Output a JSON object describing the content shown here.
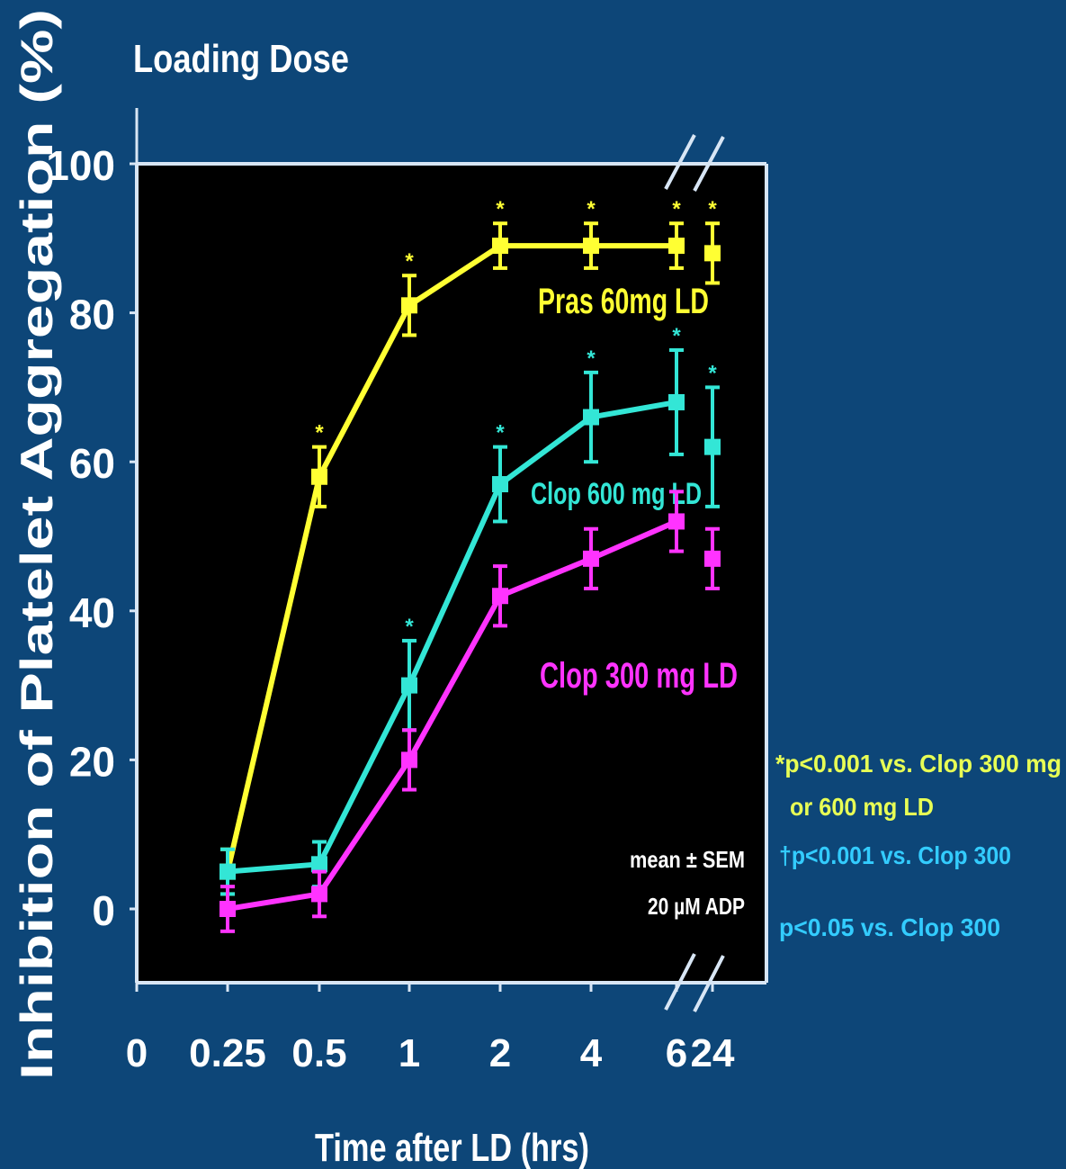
{
  "chart_data": {
    "type": "line",
    "title": "Loading Dose",
    "xlabel": "Time after LD (hrs)",
    "ylabel": "Inhibition of Platelet Aggregation (%)",
    "ylim": [
      -10,
      100
    ],
    "y_ticks": [
      "0",
      "20",
      "40",
      "60",
      "80",
      "100"
    ],
    "x_ticks": [
      "0",
      "0.25",
      "0.5",
      "1",
      "2",
      "4",
      "6",
      "24"
    ],
    "categories": [
      "0.25",
      "0.5",
      "1",
      "2",
      "4",
      "6",
      "24"
    ],
    "grid": false,
    "axis_breaks": "6 to 24 hrs",
    "series": [
      {
        "name": "Pras 60mg LD",
        "color": "#ffff33",
        "values": [
          5,
          58,
          81,
          89,
          89,
          89,
          88
        ],
        "error": [
          3,
          4,
          4,
          3,
          3,
          3,
          4
        ],
        "sig": [
          false,
          true,
          true,
          true,
          true,
          true,
          true
        ]
      },
      {
        "name": "Clop 600 mg LD",
        "color": "#33e6d6",
        "values": [
          5,
          6,
          30,
          57,
          66,
          68,
          62
        ],
        "error": [
          3,
          3,
          6,
          5,
          6,
          7,
          8
        ],
        "sig": [
          false,
          false,
          true,
          true,
          true,
          true,
          true
        ]
      },
      {
        "name": "Clop 300 mg LD",
        "color": "#ff33ff",
        "values": [
          0,
          2,
          20,
          42,
          47,
          52,
          47
        ],
        "error": [
          3,
          3,
          4,
          4,
          4,
          4,
          4
        ],
        "sig": [
          false,
          false,
          false,
          false,
          false,
          false,
          false
        ]
      }
    ],
    "annotations": {
      "stats_1": "mean ± SEM",
      "stats_2": "20 µM ADP",
      "pval_yellow_1": "*p<0.001 vs. Clop 300 mg",
      "pval_yellow_2": "or 600 mg LD",
      "pval_cyan_1": "†p<0.001 vs. Clop 300",
      "pval_cyan_2": "p<0.05 vs. Clop 300",
      "sig_marker": "*"
    }
  },
  "colors": {
    "background": "#0d4678",
    "plot_area": "#000000",
    "axis": "#d8e6f5",
    "text": "#ffffff",
    "cyan_note": "#33ccff"
  }
}
